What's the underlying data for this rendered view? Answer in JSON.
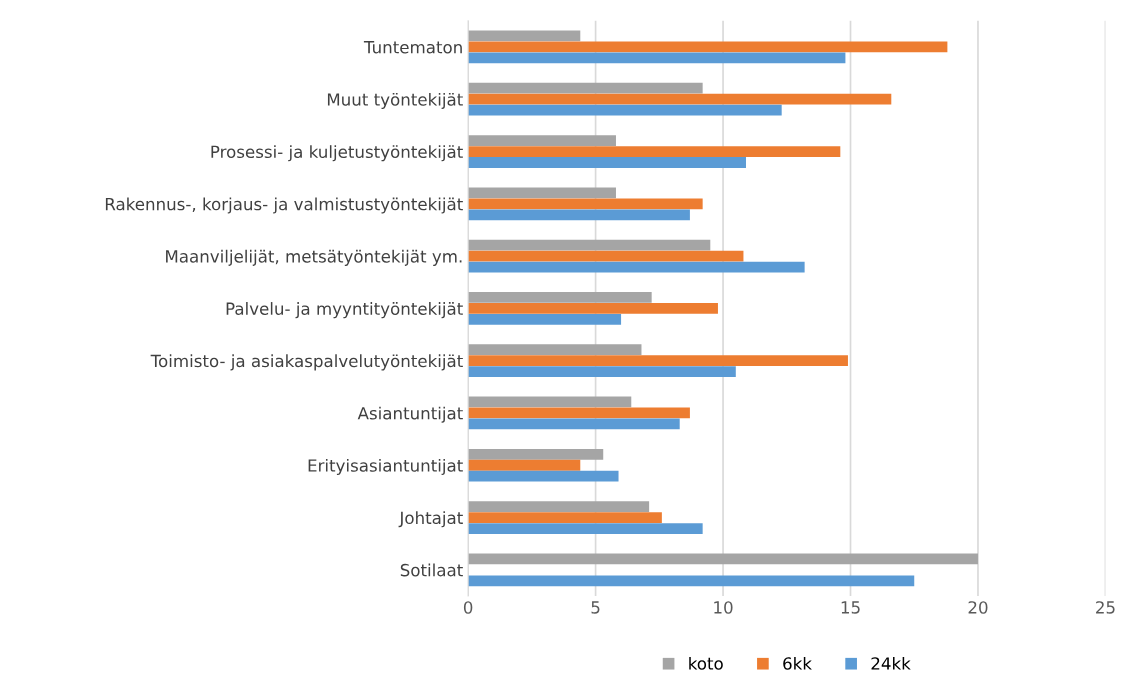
{
  "chart_data": {
    "type": "bar",
    "orientation": "horizontal",
    "categories": [
      "Tuntematon",
      "Muut työntekijät",
      "Prosessi- ja kuljetustyöntekijät",
      "Rakennus-, korjaus- ja valmistustyöntekijät",
      "Maanviljelijät, metsätyöntekijät ym.",
      "Palvelu- ja myyntityöntekijät",
      "Toimisto- ja asiakaspalvelutyöntekijät",
      "Asiantuntijat",
      "Erityisasiantuntijat",
      "Johtajat",
      "Sotilaat"
    ],
    "series": [
      {
        "name": "koto",
        "color": "#a5a5a5",
        "values": [
          4.4,
          9.2,
          5.8,
          5.8,
          9.5,
          7.2,
          6.8,
          6.4,
          5.3,
          7.1,
          20.0
        ]
      },
      {
        "name": "6kk",
        "color": "#ed7d31",
        "values": [
          18.8,
          16.6,
          14.6,
          9.2,
          10.8,
          9.8,
          14.9,
          8.7,
          4.4,
          7.6,
          null
        ]
      },
      {
        "name": "24kk",
        "color": "#5b9bd5",
        "values": [
          14.8,
          12.3,
          10.9,
          8.7,
          13.2,
          6.0,
          10.5,
          8.3,
          5.9,
          9.2,
          17.5
        ]
      }
    ],
    "xlim": [
      0,
      25
    ],
    "xticks": [
      0,
      5,
      10,
      15,
      20,
      25
    ],
    "grid": "x",
    "legend": "bottom"
  }
}
